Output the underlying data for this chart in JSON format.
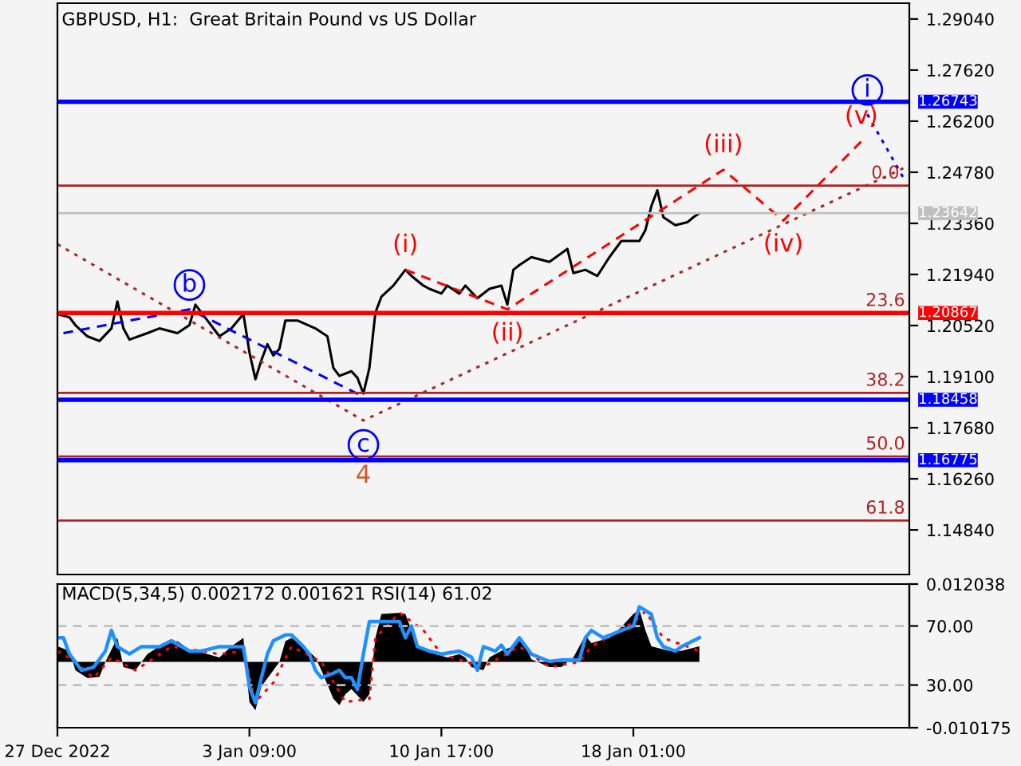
{
  "chart_data": [
    {
      "type": "line",
      "title": "GBPUSD, H1:  Great Britain Pound vs US Dollar",
      "xlim": [
        "2022-12-27T01:00",
        "2023-01-28T14:00"
      ],
      "ylim": [
        1.136,
        1.2948
      ],
      "yticks": [
        {
          "value": 1.2904,
          "label": "1.29040"
        },
        {
          "value": 1.2762,
          "label": "1.27620"
        },
        {
          "value": 1.262,
          "label": "1.26200"
        },
        {
          "value": 1.2478,
          "label": "1.24780"
        },
        {
          "value": 1.2336,
          "label": "1.23360"
        },
        {
          "value": 1.2194,
          "label": "1.21940"
        },
        {
          "value": 1.2052,
          "label": "1.20520"
        },
        {
          "value": 1.191,
          "label": "1.19100"
        },
        {
          "value": 1.1768,
          "label": "1.17680"
        },
        {
          "value": 1.1626,
          "label": "1.16260"
        },
        {
          "value": 1.1484,
          "label": "1.14840"
        }
      ],
      "tick_labels": "y",
      "grid": false,
      "legend": false,
      "series": [
        {
          "color": "#000000",
          "line_style": "solid",
          "x": [
            "2022-12-27T01:00",
            "2022-12-27T12:00",
            "2022-12-27T17:30",
            "2022-12-28T04:30",
            "2022-12-28T15:30",
            "2022-12-29T02:30",
            "2022-12-29T08:00",
            "2022-12-29T13:30",
            "2022-12-29T19:00",
            "2022-12-30T11:30",
            "2022-12-30T22:30",
            "2022-12-31T15:00",
            "2023-01-01T02:00",
            "2023-01-01T07:30",
            "2023-01-01T18:30",
            "2023-01-02T05:30",
            "2023-01-02T16:30",
            "2023-01-03T03:30",
            "2023-01-03T09:00",
            "2023-01-03T14:30",
            "2023-01-03T20:00",
            "2023-01-04T01:30",
            "2023-01-04T07:00",
            "2023-01-04T12:30",
            "2023-01-04T18:00",
            "2023-01-05T05:00",
            "2023-01-05T21:30",
            "2023-01-06T08:30",
            "2023-01-06T14:00",
            "2023-01-06T19:30",
            "2023-01-07T06:30",
            "2023-01-07T12:00",
            "2023-01-07T17:30",
            "2023-01-07T23:00",
            "2023-01-08T04:30",
            "2023-01-08T10:00",
            "2023-01-08T21:00",
            "2023-01-09T08:00",
            "2023-01-09T13:30",
            "2023-01-10T00:30",
            "2023-01-10T06:00",
            "2023-01-10T17:00",
            "2023-01-10T22:30",
            "2023-01-11T09:30",
            "2023-01-11T15:00",
            "2023-01-12T02:00",
            "2023-01-12T13:00",
            "2023-01-13T00:00",
            "2023-01-13T05:30",
            "2023-01-13T11:00",
            "2023-01-13T16:30",
            "2023-01-14T03:30",
            "2023-01-14T20:00",
            "2023-01-15T12:30",
            "2023-01-15T18:00",
            "2023-01-16T05:00",
            "2023-01-16T16:00",
            "2023-01-17T03:00",
            "2023-01-17T14:00",
            "2023-01-18T06:30",
            "2023-01-18T12:00",
            "2023-01-18T17:30",
            "2023-01-18T23:00",
            "2023-01-19T04:30",
            "2023-01-19T15:30",
            "2023-01-20T02:30",
            "2023-01-20T08:00",
            "2023-01-20T13:30"
          ],
          "values": [
            1.2084,
            1.2075,
            1.2053,
            1.2022,
            1.2009,
            1.2044,
            1.2119,
            1.2044,
            1.2013,
            1.2031,
            1.2044,
            1.2031,
            1.2053,
            1.211,
            1.2066,
            1.2022,
            1.2044,
            1.2084,
            1.1978,
            1.1903,
            1.1956,
            1.2,
            1.1969,
            1.1987,
            1.2066,
            1.2066,
            1.2044,
            1.2022,
            1.1934,
            1.1912,
            1.1925,
            1.1907,
            1.1863,
            1.1934,
            1.2088,
            1.2132,
            1.2163,
            1.2207,
            1.219,
            1.2163,
            1.2154,
            1.2141,
            1.2163,
            1.2141,
            1.2163,
            1.2128,
            1.2154,
            1.2163,
            1.211,
            1.2207,
            1.222,
            1.2242,
            1.2229,
            1.2265,
            1.2198,
            1.2207,
            1.219,
            1.2242,
            1.2287,
            1.2287,
            1.2317,
            1.2384,
            1.2428,
            1.2353,
            1.2331,
            1.2339,
            1.2353,
            1.2364
          ]
        },
        {
          "color": "#0000ff",
          "line_style": "dashed",
          "x": [
            "2022-12-27T06:30",
            "2023-01-01T02:00",
            "2023-01-07T17:30"
          ],
          "values": [
            1.2031,
            1.2097,
            1.1854
          ]
        },
        {
          "color": "#0000ff",
          "line_style": "dotted",
          "x": [
            "2023-01-26T23:30",
            "2023-01-28T08:30"
          ],
          "values": [
            1.2639,
            1.2463
          ]
        },
        {
          "color": "#a52a2a",
          "line_style": "dotted",
          "x": [
            "2022-12-27T01:00",
            "2023-01-07T17:30",
            "2023-01-28T08:30"
          ],
          "values": [
            1.2278,
            1.1788,
            1.2489
          ]
        },
        {
          "color": "#ff0000",
          "line_style": "dashed",
          "x": [
            "2023-01-09T08:00",
            "2023-01-13T05:30",
            "2023-01-21T11:30",
            "2023-01-23T18:30",
            "2023-01-26T18:00"
          ],
          "values": [
            1.2207,
            1.2097,
            1.2485,
            1.2344,
            1.2564
          ]
        }
      ],
      "ref_lines": [
        {
          "axis": "y",
          "value": 1.26743,
          "label": "1.26743",
          "color": "#0000ff"
        },
        {
          "axis": "y",
          "value": 1.20867,
          "label": "1.20867",
          "color": "#ff0000"
        },
        {
          "axis": "y",
          "value": 1.18458,
          "label": "1.18458",
          "color": "#0000ff"
        },
        {
          "axis": "y",
          "value": 1.16775,
          "label": "1.16775",
          "color": "#0000ff"
        },
        {
          "axis": "y",
          "value": 1.23642,
          "label": "1.23642",
          "color": "#c0c0c0"
        },
        {
          "axis": "y",
          "value": 1.2441,
          "color": "#b22222"
        },
        {
          "axis": "y",
          "value": 1.1865,
          "color": "#b22222"
        },
        {
          "axis": "y",
          "value": 1.1688,
          "color": "#b22222"
        },
        {
          "axis": "y",
          "value": 1.151,
          "color": "#b22222"
        }
      ],
      "annotations": [
        {
          "text": "b",
          "x": "2023-01-01T02:00",
          "y": 1.2097
        },
        {
          "text": "c",
          "x": "2023-01-07T17:30",
          "y": 1.1788
        },
        {
          "text": "4",
          "x": "2023-01-07T17:30",
          "y": 1.1788
        },
        {
          "text": "(i)",
          "x": "2023-01-09T08:00",
          "y": 1.2207
        },
        {
          "text": "(ii)",
          "x": "2023-01-13T05:30",
          "y": 1.2097
        },
        {
          "text": "(iii)",
          "x": "2023-01-21T11:30",
          "y": 1.2485
        },
        {
          "text": "(iv)",
          "x": "2023-01-23T18:30",
          "y": 1.2344
        },
        {
          "text": "(v)",
          "x": "2023-01-26T18:00",
          "y": 1.2564
        },
        {
          "text": "i",
          "x": "2023-01-26T23:30",
          "y": 1.2639
        },
        {
          "text": "0.0",
          "x": "2023-01-27T16:00",
          "y": 1.2441
        },
        {
          "text": "23.6",
          "x": "2023-01-27T16:00",
          "y": 1.20867
        },
        {
          "text": "38.2",
          "x": "2023-01-27T16:00",
          "y": 1.1865
        },
        {
          "text": "50.0",
          "x": "2023-01-27T16:00",
          "y": 1.1688
        },
        {
          "text": "61.8",
          "x": "2023-01-27T16:00",
          "y": 1.151
        }
      ]
    },
    {
      "type": "line",
      "title": "MACD(5,34,5) 0.002172 0.001621 RSI(14) 61.02",
      "xlim": [
        "2022-12-27T01:00",
        "2023-01-28T14:00"
      ],
      "xticks": [
        {
          "value": "2022-12-27T01:00",
          "label": "27 Dec 2022"
        },
        {
          "value": "2023-01-03T09:00",
          "label": "3 Jan 09:00"
        },
        {
          "value": "2023-01-10T17:00",
          "label": "10 Jan 17:00"
        },
        {
          "value": "2023-01-18T01:00",
          "label": "18 Jan 01:00"
        }
      ],
      "ylim": [
        -0.010175,
        0.012038
      ],
      "yticks": [
        -0.010175,
        0.012038
      ],
      "y2lim": [
        1.1,
        98.4
      ],
      "y2ticks": [
        {
          "value": 30,
          "label": "30.00"
        },
        {
          "value": 70,
          "label": "70.00"
        }
      ],
      "grid": "y2",
      "legend": false,
      "series": [
        {
          "type": "area",
          "color": "#000000",
          "x": [
            "2022-12-27T01:00",
            "2022-12-27T12:00",
            "2022-12-27T17:30",
            "2022-12-28T04:30",
            "2022-12-28T15:30",
            "2022-12-28T21:00",
            "2022-12-29T02:30",
            "2022-12-29T08:00",
            "2022-12-29T13:30",
            "2022-12-30T00:30",
            "2022-12-30T11:30",
            "2022-12-30T22:30",
            "2022-12-31T15:00",
            "2023-01-01T02:00",
            "2023-01-01T18:30",
            "2023-01-02T05:30",
            "2023-01-02T16:30",
            "2023-01-03T03:30",
            "2023-01-03T09:00",
            "2023-01-03T14:30",
            "2023-01-03T20:00",
            "2023-01-04T07:00",
            "2023-01-04T12:30",
            "2023-01-04T18:00",
            "2023-01-04T23:30",
            "2023-01-05T10:30",
            "2023-01-05T21:30",
            "2023-01-06T03:00",
            "2023-01-06T14:00",
            "2023-01-06T19:30",
            "2023-01-07T01:00",
            "2023-01-07T06:30",
            "2023-01-07T17:30",
            "2023-01-07T23:00",
            "2023-01-08T04:30",
            "2023-01-08T10:00",
            "2023-01-09T02:30",
            "2023-01-09T08:00",
            "2023-01-09T13:30",
            "2023-01-09T19:00",
            "2023-01-10T06:00",
            "2023-01-10T11:30",
            "2023-01-10T22:30",
            "2023-01-11T09:30",
            "2023-01-11T15:00",
            "2023-01-11T20:30",
            "2023-01-12T07:30",
            "2023-01-12T13:00",
            "2023-01-13T00:00",
            "2023-01-13T11:00",
            "2023-01-13T16:30",
            "2023-01-13T22:00",
            "2023-01-14T03:30",
            "2023-01-14T20:00",
            "2023-01-15T07:00",
            "2023-01-15T18:00",
            "2023-01-16T05:00",
            "2023-01-16T10:30",
            "2023-01-17T03:00",
            "2023-01-17T14:00",
            "2023-01-18T01:00",
            "2023-01-18T06:30",
            "2023-01-18T12:00",
            "2023-01-18T17:30",
            "2023-01-19T10:00",
            "2023-01-19T21:00",
            "2023-01-20T13:30"
          ],
          "values": [
            0.0024,
            0.0017,
            -0.0013,
            -0.0025,
            -0.0023,
            0.0,
            0.0019,
            0.0037,
            -0.0008,
            -0.0013,
            0.0012,
            0.0024,
            0.0032,
            0.0019,
            0.0012,
            0.0007,
            0.0024,
            0.0037,
            -0.0062,
            -0.0075,
            -0.0038,
            -0.0013,
            0.0,
            0.0032,
            0.0037,
            0.0024,
            0.0007,
            -0.0013,
            -0.0057,
            -0.0067,
            -0.005,
            -0.0042,
            -0.0062,
            -0.005,
            0.0037,
            0.0074,
            0.0076,
            0.0074,
            0.0049,
            0.0024,
            0.0017,
            0.0012,
            0.0007,
            0.0012,
            0.0007,
            -0.0008,
            -0.0013,
            0.0007,
            0.0017,
            0.0024,
            0.0037,
            0.0024,
            0.0004,
            -0.0008,
            -0.0008,
            0.0007,
            0.0041,
            0.0029,
            0.0037,
            0.0054,
            0.0074,
            0.0081,
            0.0049,
            0.0024,
            0.0017,
            0.0017,
            0.0024
          ]
        },
        {
          "color": "#ff0000",
          "line_style": "dotted",
          "x": [
            "2022-12-27T01:00",
            "2022-12-27T17:30",
            "2022-12-28T10:00",
            "2022-12-29T02:30",
            "2022-12-30T00:30",
            "2022-12-31T09:30",
            "2023-01-02T05:30",
            "2023-01-03T03:30",
            "2023-01-03T14:30",
            "2023-01-04T07:00",
            "2023-01-04T23:30",
            "2023-01-06T03:00",
            "2023-01-07T01:00",
            "2023-01-07T23:00",
            "2023-01-08T04:30",
            "2023-01-09T02:30",
            "2023-01-10T00:30",
            "2023-01-10T17:00",
            "2023-01-12T07:30",
            "2023-01-13T16:30",
            "2023-01-14T20:00",
            "2023-01-15T23:30",
            "2023-01-16T10:30",
            "2023-01-18T01:00",
            "2023-01-18T12:00",
            "2023-01-19T04:30",
            "2023-01-20T13:30"
          ],
          "values": [
            0.0017,
            0.0,
            -0.0025,
            0.0007,
            -0.0013,
            0.0024,
            0.0012,
            0.0017,
            -0.0062,
            -0.0032,
            0.0024,
            0.0,
            -0.0062,
            -0.0057,
            0.0037,
            0.0076,
            0.0049,
            0.0012,
            -0.0008,
            0.0024,
            -0.0008,
            0.0,
            0.0024,
            0.0061,
            0.0078,
            0.0037,
            0.0017
          ]
        },
        {
          "color": "#1e90ff",
          "line_style": "solid",
          "axis": "y2",
          "x": [
            "2022-12-27T01:00",
            "2022-12-27T06:30",
            "2022-12-27T12:00",
            "2022-12-27T23:00",
            "2022-12-28T10:00",
            "2022-12-28T21:00",
            "2022-12-29T02:30",
            "2022-12-29T08:00",
            "2022-12-29T19:00",
            "2022-12-30T06:00",
            "2022-12-30T22:30",
            "2022-12-31T09:30",
            "2023-01-01T02:00",
            "2023-01-01T13:00",
            "2023-01-02T05:30",
            "2023-01-02T16:30",
            "2023-01-03T03:30",
            "2023-01-03T09:00",
            "2023-01-03T14:30",
            "2023-01-03T20:00",
            "2023-01-04T01:30",
            "2023-01-04T07:00",
            "2023-01-04T18:00",
            "2023-01-04T23:30",
            "2023-01-05T10:30",
            "2023-01-05T16:00",
            "2023-01-05T21:30",
            "2023-01-06T03:00",
            "2023-01-06T14:00",
            "2023-01-06T19:30",
            "2023-01-07T01:00",
            "2023-01-07T06:30",
            "2023-01-07T12:00",
            "2023-01-07T17:30",
            "2023-01-07T23:00",
            "2023-01-08T04:30",
            "2023-01-09T02:30",
            "2023-01-09T08:00",
            "2023-01-09T13:30",
            "2023-01-09T19:00",
            "2023-01-10T06:00",
            "2023-01-10T17:00",
            "2023-01-11T09:30",
            "2023-01-11T20:30",
            "2023-01-12T02:00",
            "2023-01-12T07:30",
            "2023-01-12T18:30",
            "2023-01-13T00:00",
            "2023-01-13T05:30",
            "2023-01-13T16:30",
            "2023-01-14T03:30",
            "2023-01-14T20:00",
            "2023-01-15T07:00",
            "2023-01-15T23:30",
            "2023-01-16T05:00",
            "2023-01-16T10:30",
            "2023-01-16T21:30",
            "2023-01-17T14:00",
            "2023-01-18T01:00",
            "2023-01-18T06:30",
            "2023-01-18T17:30",
            "2023-01-18T23:00",
            "2023-01-19T04:30",
            "2023-01-19T15:30",
            "2023-01-19T21:00",
            "2023-01-20T13:30"
          ],
          "values": [
            62,
            62,
            51,
            40,
            42,
            53,
            67,
            56,
            51,
            56,
            56,
            60,
            53,
            53,
            56,
            56,
            56,
            29,
            18,
            35,
            51,
            60,
            64,
            64,
            56,
            51,
            40,
            35,
            38,
            40,
            35,
            35,
            27,
            51,
            73,
            73,
            73,
            62,
            70,
            56,
            53,
            51,
            53,
            49,
            40,
            56,
            53,
            57,
            51,
            62,
            51,
            46,
            47,
            47,
            62,
            67,
            62,
            67,
            70,
            83,
            78,
            62,
            56,
            53,
            56,
            62
          ]
        }
      ]
    }
  ]
}
